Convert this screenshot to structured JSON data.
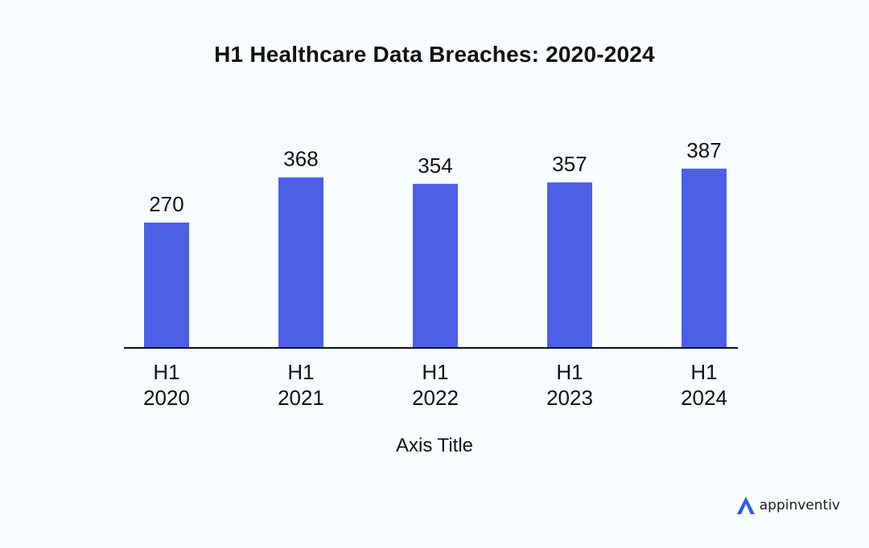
{
  "title": "H1 Healthcare Data Breaches: 2020-2024",
  "chart_data": {
    "type": "bar",
    "title": "H1 Healthcare Data Breaches: 2020-2024",
    "categories": [
      [
        "H1",
        "2020"
      ],
      [
        "H1",
        "2021"
      ],
      [
        "H1",
        "2022"
      ],
      [
        "H1",
        "2023"
      ],
      [
        "H1",
        "2024"
      ]
    ],
    "values": [
      270,
      368,
      354,
      357,
      387
    ],
    "xlabel": "Axis Title",
    "ylabel": "",
    "ylim": [
      0,
      420
    ],
    "grid": false,
    "legend": "none",
    "bar_color": "#4c5fe6",
    "axis_color": "#111111"
  },
  "brand": {
    "name": "appinventiv",
    "logo_color": "#2f5be8"
  }
}
